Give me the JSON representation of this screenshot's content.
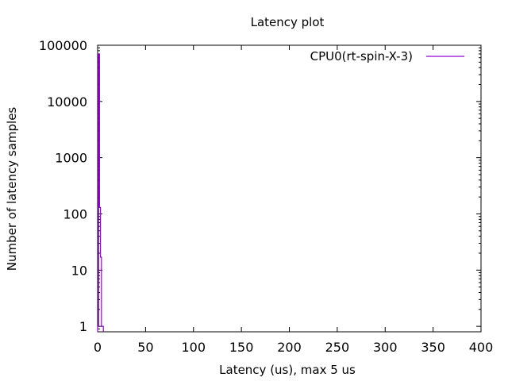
{
  "chart_data": {
    "type": "line",
    "title": "Latency plot",
    "xlabel": "Latency (us), max 5 us",
    "ylabel": "Number of latency samples",
    "xlim": [
      0,
      400
    ],
    "ylim": [
      0.8,
      100000
    ],
    "yscale": "log",
    "grid": false,
    "legend_position": "top-right",
    "x_ticks": [
      0,
      50,
      100,
      150,
      200,
      250,
      300,
      350,
      400
    ],
    "x_tick_labels": [
      "0",
      "50",
      "100",
      "150",
      "200",
      "250",
      "300",
      "350",
      "400"
    ],
    "y_ticks": [
      1,
      10,
      100,
      1000,
      10000,
      100000
    ],
    "y_tick_labels": [
      "1",
      "10",
      "100",
      "1000",
      "10000",
      "100000"
    ],
    "series": [
      {
        "name": "CPU0(rt-spin-X-3)",
        "color": "#9400d3",
        "step": true,
        "x": [
          0,
          1,
          2,
          3,
          4,
          5
        ],
        "y": [
          1,
          70000,
          130,
          17,
          1,
          1
        ]
      }
    ]
  }
}
